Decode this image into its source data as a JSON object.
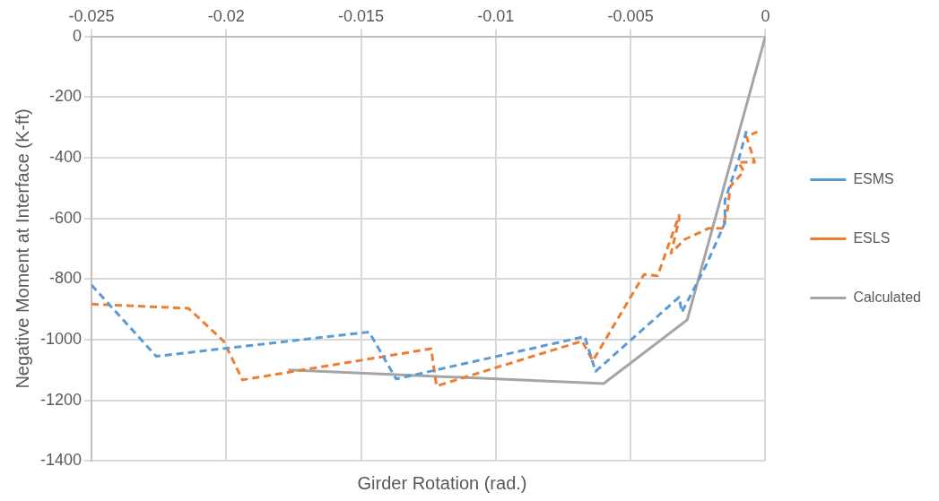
{
  "chart_data": {
    "type": "line",
    "xlabel": "Girder Rotation (rad.)",
    "ylabel": "Negative Moment at Interface (K-ft)",
    "xlim": [
      -0.025,
      0
    ],
    "xticks": [
      -0.025,
      -0.02,
      -0.015,
      -0.01,
      -0.005,
      0
    ],
    "ylim": [
      -1400,
      0
    ],
    "yticks": [
      -1400,
      -1200,
      -1000,
      -800,
      -600,
      -400,
      -200,
      0
    ],
    "grid": true,
    "legend": "right",
    "marker": "none",
    "series": [
      {
        "name": "ESMS",
        "color": "#5b9bd5",
        "line_style": "dashed",
        "x": [
          -0.025,
          -0.0226,
          -0.0147,
          -0.0137,
          -0.0067,
          -0.0063,
          -0.0032,
          -0.0031,
          -0.0022,
          -0.0015,
          -0.0015,
          -0.001,
          -0.0007
        ],
        "values": [
          -820,
          -1055,
          -975,
          -1130,
          -990,
          -1105,
          -860,
          -910,
          -755,
          -615,
          -540,
          -410,
          -310
        ]
      },
      {
        "name": "ESLS",
        "color": "#ed7d31",
        "line_style": "dashed",
        "x": [
          -0.025,
          -0.0214,
          -0.0201,
          -0.0194,
          -0.0124,
          -0.0122,
          -0.0068,
          -0.0064,
          -0.0045,
          -0.004,
          -0.0032,
          -0.0032,
          -0.0035,
          -0.003,
          -0.0021,
          -0.0016,
          -0.0014,
          -0.0013,
          -0.0008,
          -0.001,
          -0.0004,
          -0.0007,
          -0.0003
        ],
        "values": [
          -883,
          -897,
          -1005,
          -1133,
          -1030,
          -1153,
          -1005,
          -1070,
          -785,
          -790,
          -590,
          -605,
          -715,
          -670,
          -633,
          -633,
          -570,
          -495,
          -445,
          -415,
          -415,
          -330,
          -315
        ]
      },
      {
        "name": "Calculated",
        "color": "#a5a5a5",
        "line_style": "solid",
        "x": [
          -0.0177,
          -0.006,
          -0.0029,
          0
        ],
        "values": [
          -1100,
          -1145,
          -935,
          0
        ]
      }
    ]
  }
}
